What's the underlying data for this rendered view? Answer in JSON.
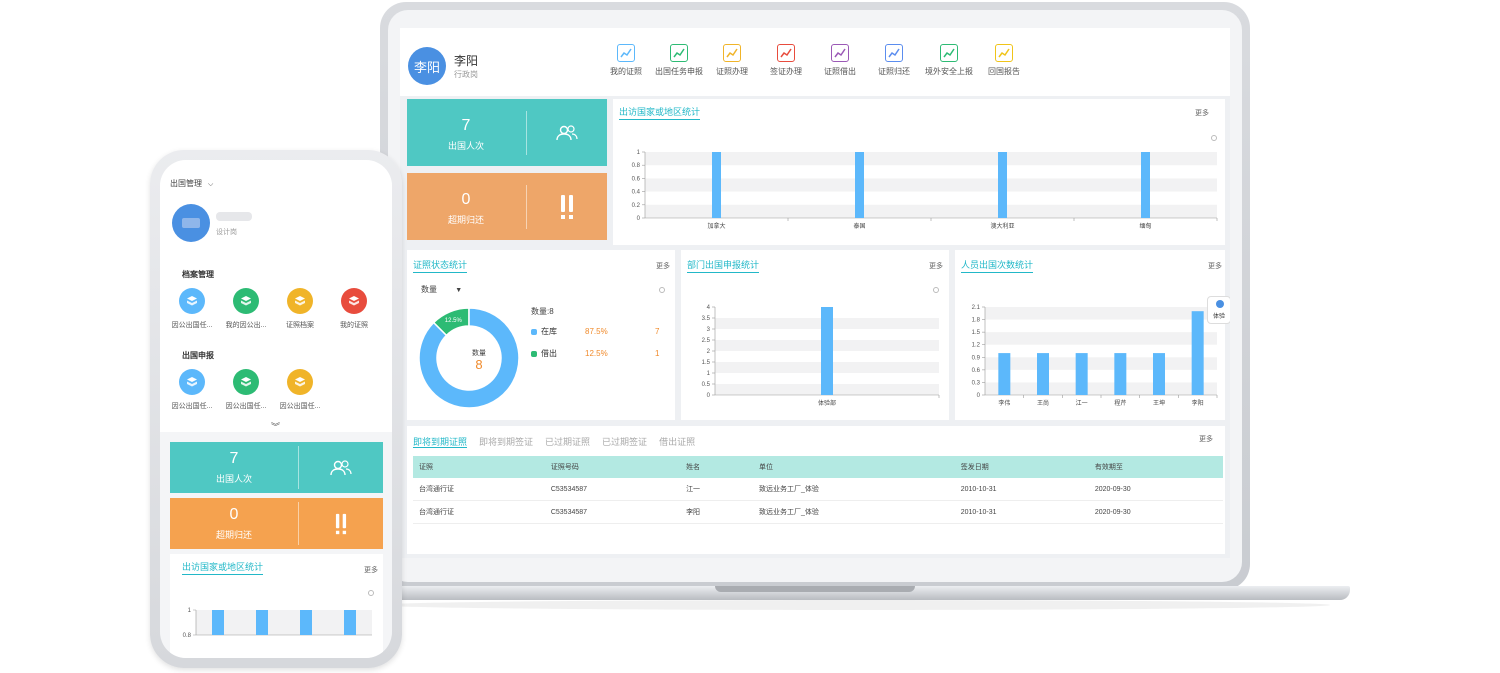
{
  "colors": {
    "teal": "#4fc8c3",
    "orange": "#eea669",
    "bar_blue": "#5cb8fb",
    "accent": "#22b8c8",
    "avatar_blue": "#4a90e2"
  },
  "laptop": {
    "user": {
      "avatar_text": "李阳",
      "name": "李阳",
      "role": "行政岗"
    },
    "nav": [
      {
        "label": "我的证照",
        "color": "#5cb8fb",
        "icon": "trend-up-icon"
      },
      {
        "label": "出国任务申报",
        "color": "#2dbb74",
        "icon": "trend-up-icon"
      },
      {
        "label": "证照办理",
        "color": "#f0b429",
        "icon": "trend-up-icon"
      },
      {
        "label": "签证办理",
        "color": "#e84c3d",
        "icon": "trend-up-icon"
      },
      {
        "label": "证照借出",
        "color": "#9b59b6",
        "icon": "trend-up-icon"
      },
      {
        "label": "证照归还",
        "color": "#5b8def",
        "icon": "trend-up-icon"
      },
      {
        "label": "境外安全上报",
        "color": "#2dbb74",
        "icon": "trend-up-icon"
      },
      {
        "label": "回国报告",
        "color": "#f0c419",
        "icon": "trend-up-icon"
      }
    ],
    "stats": [
      {
        "value": "7",
        "label": "出国人次",
        "icon": "people-icon"
      },
      {
        "value": "0",
        "label": "超期归还",
        "icon": "exclamation-icon"
      }
    ],
    "country_panel": {
      "title": "出访国家或地区统计",
      "more": "更多"
    },
    "status_panel": {
      "title": "证照状态统计",
      "more": "更多",
      "dropdown": "数量",
      "center_label": "数量",
      "center_value": "8",
      "total_label": "数量:8",
      "legend": [
        {
          "name": "在库",
          "percent": "87.5%",
          "count": "7",
          "color": "#5cb8fb"
        },
        {
          "name": "借出",
          "percent": "12.5%",
          "count": "1",
          "color": "#2dbb74"
        }
      ],
      "slice_labels": [
        "87.5%",
        "12.5%"
      ]
    },
    "dept_panel": {
      "title": "部门出国申报统计",
      "more": "更多"
    },
    "person_panel": {
      "title": "人员出国次数统计",
      "more": "更多",
      "float_tag": "体验"
    },
    "bottom_tabs": [
      "即将到期证照",
      "即将到期签证",
      "已过期证照",
      "已过期签证",
      "借出证照"
    ],
    "bottom_more": "更多",
    "table": {
      "headers": [
        "证照",
        "证照号码",
        "姓名",
        "单位",
        "签发日期",
        "有效期至"
      ],
      "rows": [
        [
          "台湾通行证",
          "C53534587",
          "江一",
          "致远业务工厂_体验",
          "2010-10-31",
          "2020-09-30"
        ],
        [
          "台湾通行证",
          "C53534587",
          "李阳",
          "致远业务工厂_体验",
          "2010-10-31",
          "2020-09-30"
        ]
      ]
    }
  },
  "chart_data": [
    {
      "type": "bar",
      "title": "出访国家或地区统计",
      "categories": [
        "加拿大",
        "泰国",
        "澳大利亚",
        "缅甸"
      ],
      "values": [
        1,
        1,
        1,
        1
      ],
      "ylim": [
        0,
        1
      ],
      "yticks": [
        "0",
        "0.2",
        "0.4",
        "0.6",
        "0.8",
        "1"
      ]
    },
    {
      "type": "pie",
      "title": "证照状态统计",
      "categories": [
        "在库",
        "借出"
      ],
      "values": [
        7,
        1
      ]
    },
    {
      "type": "bar",
      "title": "部门出国申报统计",
      "categories": [
        "体验部"
      ],
      "values": [
        4
      ],
      "ylim": [
        0,
        4
      ],
      "yticks": [
        "0",
        "0.5",
        "1",
        "1.5",
        "2",
        "2.5",
        "3",
        "3.5",
        "4"
      ]
    },
    {
      "type": "bar",
      "title": "人员出国次数统计",
      "categories": [
        "李伟",
        "王尚",
        "江一",
        "程芹",
        "王坤",
        "李阳"
      ],
      "values": [
        1,
        1,
        1,
        1,
        1,
        2
      ],
      "ylim": [
        0,
        2.1
      ],
      "yticks": [
        "0",
        "0.3",
        "0.6",
        "0.9",
        "1.2",
        "1.5",
        "1.8",
        "2.1"
      ]
    },
    {
      "type": "bar",
      "title": "出访国家或地区统计",
      "categories": [
        "",
        "",
        "",
        ""
      ],
      "values": [
        1,
        1,
        1,
        1
      ],
      "ylim": [
        0.8,
        1
      ],
      "yticks": [
        "0.8",
        "1"
      ]
    }
  ],
  "phone": {
    "top_menu": "出国管理",
    "user_role": "设计岗",
    "section1": {
      "title": "档案管理",
      "items": [
        {
          "label": "因公出国任...",
          "color": "#5cb8fb"
        },
        {
          "label": "我的因公出...",
          "color": "#2dbb74"
        },
        {
          "label": "证照档案",
          "color": "#f0b429"
        },
        {
          "label": "我的证照",
          "color": "#e84c3d"
        }
      ]
    },
    "section2": {
      "title": "出国申报",
      "items": [
        {
          "label": "因公出国任...",
          "color": "#5cb8fb"
        },
        {
          "label": "因公出国任...",
          "color": "#2dbb74"
        },
        {
          "label": "因公出国任...",
          "color": "#f0b429"
        }
      ]
    },
    "stats": [
      {
        "value": "7",
        "label": "出国人次"
      },
      {
        "value": "0",
        "label": "超期归还"
      }
    ],
    "country_panel": {
      "title": "出访国家或地区统计",
      "more": "更多"
    }
  }
}
